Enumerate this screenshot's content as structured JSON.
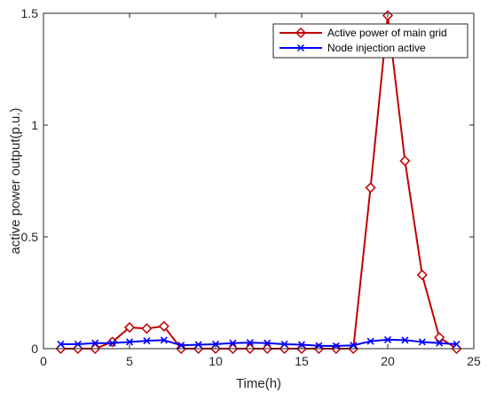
{
  "chart_data": {
    "type": "line",
    "title": "",
    "xlabel": "Time(h)",
    "ylabel": "active power output(p.u.)",
    "xlim": [
      0,
      25
    ],
    "ylim": [
      0,
      1.5
    ],
    "xticks": [
      0,
      5,
      10,
      15,
      20,
      25
    ],
    "yticks": [
      0,
      0.5,
      1,
      1.5
    ],
    "ytick_labels": [
      "0",
      "0.5",
      "1",
      "1.5"
    ],
    "grid": false,
    "legend_position": "top-right",
    "series": [
      {
        "name": "Active power of main grid",
        "color": "#c00000",
        "marker": "diamond",
        "x": [
          1,
          2,
          3,
          4,
          5,
          6,
          7,
          8,
          9,
          10,
          11,
          12,
          13,
          14,
          15,
          16,
          17,
          18,
          19,
          20,
          21,
          22,
          23,
          24
        ],
        "values": [
          0,
          0,
          0,
          0.03,
          0.095,
          0.09,
          0.1,
          0,
          0,
          0,
          0,
          0,
          0,
          0,
          0,
          0,
          0,
          0,
          0.72,
          1.49,
          0.84,
          0.33,
          0.05,
          0
        ]
      },
      {
        "name": "Node injection active",
        "color": "#0000ff",
        "marker": "x",
        "x": [
          1,
          2,
          3,
          4,
          5,
          6,
          7,
          8,
          9,
          10,
          11,
          12,
          13,
          14,
          15,
          16,
          17,
          18,
          19,
          20,
          21,
          22,
          23,
          24
        ],
        "values": [
          0.02,
          0.02,
          0.025,
          0.025,
          0.03,
          0.035,
          0.038,
          0.015,
          0.018,
          0.02,
          0.025,
          0.027,
          0.025,
          0.02,
          0.018,
          0.013,
          0.012,
          0.015,
          0.033,
          0.04,
          0.038,
          0.03,
          0.025,
          0.02
        ]
      }
    ]
  }
}
